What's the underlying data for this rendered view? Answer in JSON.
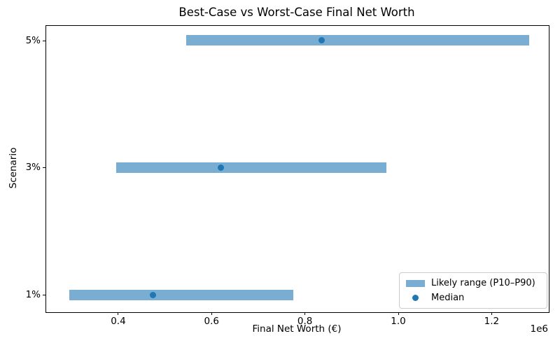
{
  "chart_data": {
    "type": "bar",
    "orientation": "horizontal",
    "title": "Best-Case vs Worst-Case Final Net Worth",
    "xlabel": "Final Net Worth (€)",
    "ylabel": "Scenario",
    "categories": [
      "5%",
      "3%",
      "1%"
    ],
    "series": [
      {
        "name": "Likely range (P10–P90)",
        "type": "range_bar",
        "p10": [
          545000,
          395000,
          295000
        ],
        "p90": [
          1280000,
          975000,
          775000
        ]
      },
      {
        "name": "Median",
        "type": "point",
        "values": [
          835000,
          620000,
          475000
        ]
      }
    ],
    "xlim": [
      245600,
      1322400
    ],
    "x_ticks": [
      400000,
      600000,
      800000,
      1000000,
      1200000
    ],
    "x_tick_labels": [
      "0.4",
      "0.6",
      "0.8",
      "1.0",
      "1.2"
    ],
    "x_offset_label": "1e6",
    "grid": false,
    "legend": {
      "position": "lower right",
      "labels": [
        "Likely range (P10–P90)",
        "Median"
      ]
    },
    "colors": {
      "range_bar": "#79add2",
      "median_dot": "#1f77b4",
      "axis": "#000000",
      "legend_border": "#cccccc",
      "background": "#ffffff"
    }
  }
}
